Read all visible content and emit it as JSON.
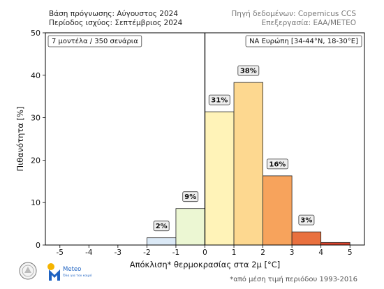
{
  "header": {
    "left_line1": "Βάση πρόγνωσης: Αύγουστος 2024",
    "left_line2": "Περίοδος ισχύος: Σεπτέμβριος 2024",
    "right_line1": "Πηγή δεδομένων: Copernicus CCS",
    "right_line2": "Επεξεργασία: ΕΑΑ/METEO"
  },
  "logos": {
    "meteo_text": "Meteo",
    "meteo_subtext": "Όλα για τον καιρό"
  },
  "footnote": "*από μέση τιμή περιόδου 1993-2016",
  "chart_data": {
    "type": "bar",
    "xlabel": "Απόκλιση* θερμοκρασίας στα 2μ [°C]",
    "ylabel": "Πιθανότητα [%]",
    "xlim": [
      -5.5,
      5.5
    ],
    "ylim": [
      0,
      50
    ],
    "xticks": [
      -5,
      -4,
      -3,
      -2,
      -1,
      0,
      1,
      2,
      3,
      4,
      5
    ],
    "yticks": [
      0,
      10,
      20,
      30,
      40,
      50
    ],
    "grid": false,
    "vline_x": 0,
    "box_left": "7 μοντέλα / 350 σενάρια",
    "box_right": "ΝΑ Ευρώπη [34-44°N, 18-30°E]",
    "bins": [
      {
        "x0": -2,
        "x1": -1,
        "value": 1.7,
        "label": "2%",
        "color": "#dbe9f6"
      },
      {
        "x0": -1,
        "x1": 0,
        "value": 8.6,
        "label": "9%",
        "color": "#ecf7d3"
      },
      {
        "x0": 0,
        "x1": 1,
        "value": 31.4,
        "label": "31%",
        "color": "#fff3b8"
      },
      {
        "x0": 1,
        "x1": 2,
        "value": 38.3,
        "label": "38%",
        "color": "#fdd890"
      },
      {
        "x0": 2,
        "x1": 3,
        "value": 16.3,
        "label": "16%",
        "color": "#f7a35c"
      },
      {
        "x0": 3,
        "x1": 4,
        "value": 3.1,
        "label": "3%",
        "color": "#e9703e"
      },
      {
        "x0": 4,
        "x1": 5,
        "value": 0.6,
        "label": "",
        "color": "#d7422b"
      }
    ]
  }
}
